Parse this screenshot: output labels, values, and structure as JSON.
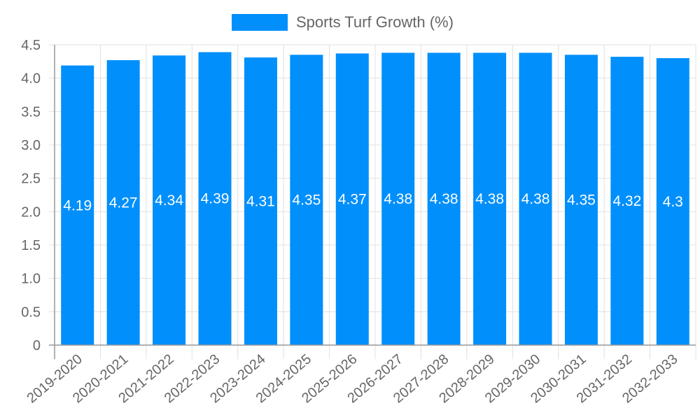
{
  "chart_data": {
    "type": "bar",
    "title": "",
    "legend": [
      {
        "name": "Sports Turf Growth (%)",
        "color": "#008ffb"
      }
    ],
    "legend_position": "top",
    "categories": [
      "2019-2020",
      "2020-2021",
      "2021-2022",
      "2022-2023",
      "2023-2024",
      "2024-2025",
      "2025-2026",
      "2026-2027",
      "2027-2028",
      "2028-2029",
      "2029-2030",
      "2030-2031",
      "2031-2032",
      "2032-2033"
    ],
    "series": [
      {
        "name": "Sports Turf Growth (%)",
        "values": [
          4.19,
          4.27,
          4.34,
          4.39,
          4.31,
          4.35,
          4.37,
          4.38,
          4.38,
          4.38,
          4.38,
          4.35,
          4.32,
          4.3
        ]
      }
    ],
    "data_labels": [
      "4.19",
      "4.27",
      "4.34",
      "4.39",
      "4.31",
      "4.35",
      "4.37",
      "4.38",
      "4.38",
      "4.38",
      "4.38",
      "4.35",
      "4.32",
      "4.3"
    ],
    "xlabel": "",
    "ylabel": "",
    "ylim": [
      0,
      4.5
    ],
    "yticks": [
      "0",
      "0.5",
      "1.0",
      "1.5",
      "2.0",
      "2.5",
      "3.0",
      "3.5",
      "4.0",
      "4.5"
    ],
    "grid": true,
    "colors": {
      "bar": "#008ffb",
      "grid": "#e0e0e0",
      "axis": "#999999",
      "tick_text": "#666666",
      "label_text": "#ffffff"
    }
  }
}
